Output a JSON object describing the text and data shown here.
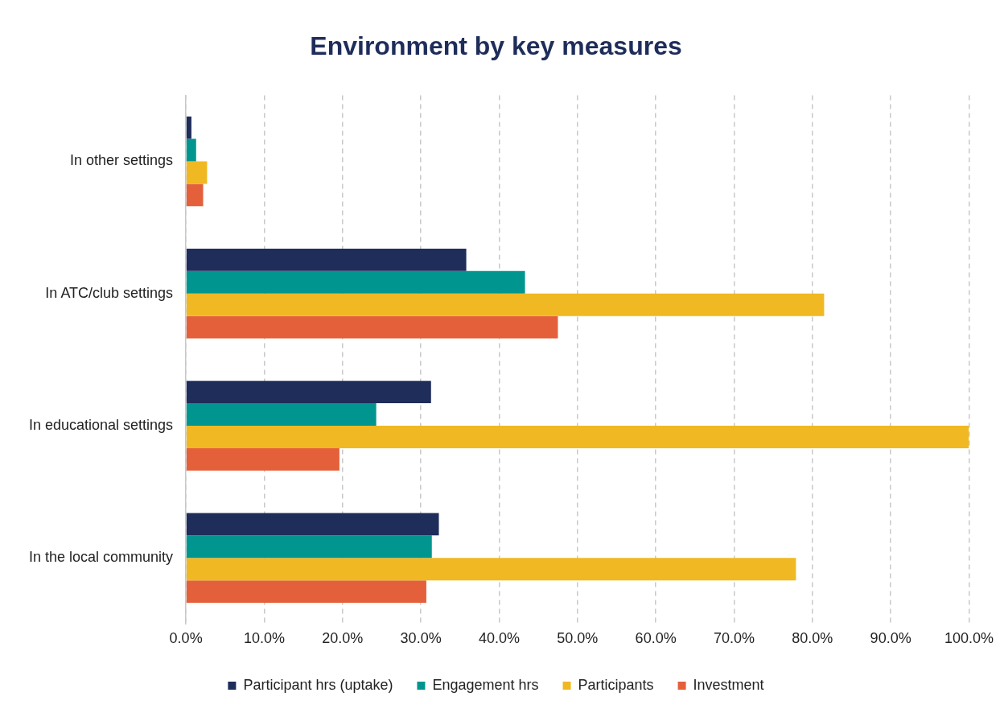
{
  "chart_data": {
    "type": "bar",
    "orientation": "horizontal",
    "title": "Environment by key measures",
    "categories": [
      "In other settings",
      "In ATC/club settings",
      "In educational settings",
      "In the local community"
    ],
    "series": [
      {
        "name": "Participant hrs (uptake)",
        "color": "#1f2d5a",
        "values": [
          0.7,
          35.8,
          31.3,
          32.3
        ]
      },
      {
        "name": "Engagement hrs",
        "color": "#00968f",
        "values": [
          1.3,
          43.3,
          24.3,
          31.4
        ]
      },
      {
        "name": "Participants",
        "color": "#f0b822",
        "values": [
          2.7,
          81.5,
          100,
          77.9
        ]
      },
      {
        "name": "Investment",
        "color": "#e4603b",
        "values": [
          2.2,
          47.5,
          19.6,
          30.7
        ]
      }
    ],
    "xlim": [
      0,
      100
    ],
    "xticks": [
      {
        "value": 0,
        "label": "0.0%"
      },
      {
        "value": 10,
        "label": "10.0%"
      },
      {
        "value": 20,
        "label": "20.0%"
      },
      {
        "value": 30,
        "label": "30.0%"
      },
      {
        "value": 40,
        "label": "40.0%"
      },
      {
        "value": 50,
        "label": "50.0%"
      },
      {
        "value": 60,
        "label": "60.0%"
      },
      {
        "value": 70,
        "label": "70.0%"
      },
      {
        "value": 80,
        "label": "80.0%"
      },
      {
        "value": 90,
        "label": "90.0%"
      },
      {
        "value": 100,
        "label": "100.0%"
      }
    ],
    "grid": "x",
    "legend": "bottom"
  }
}
